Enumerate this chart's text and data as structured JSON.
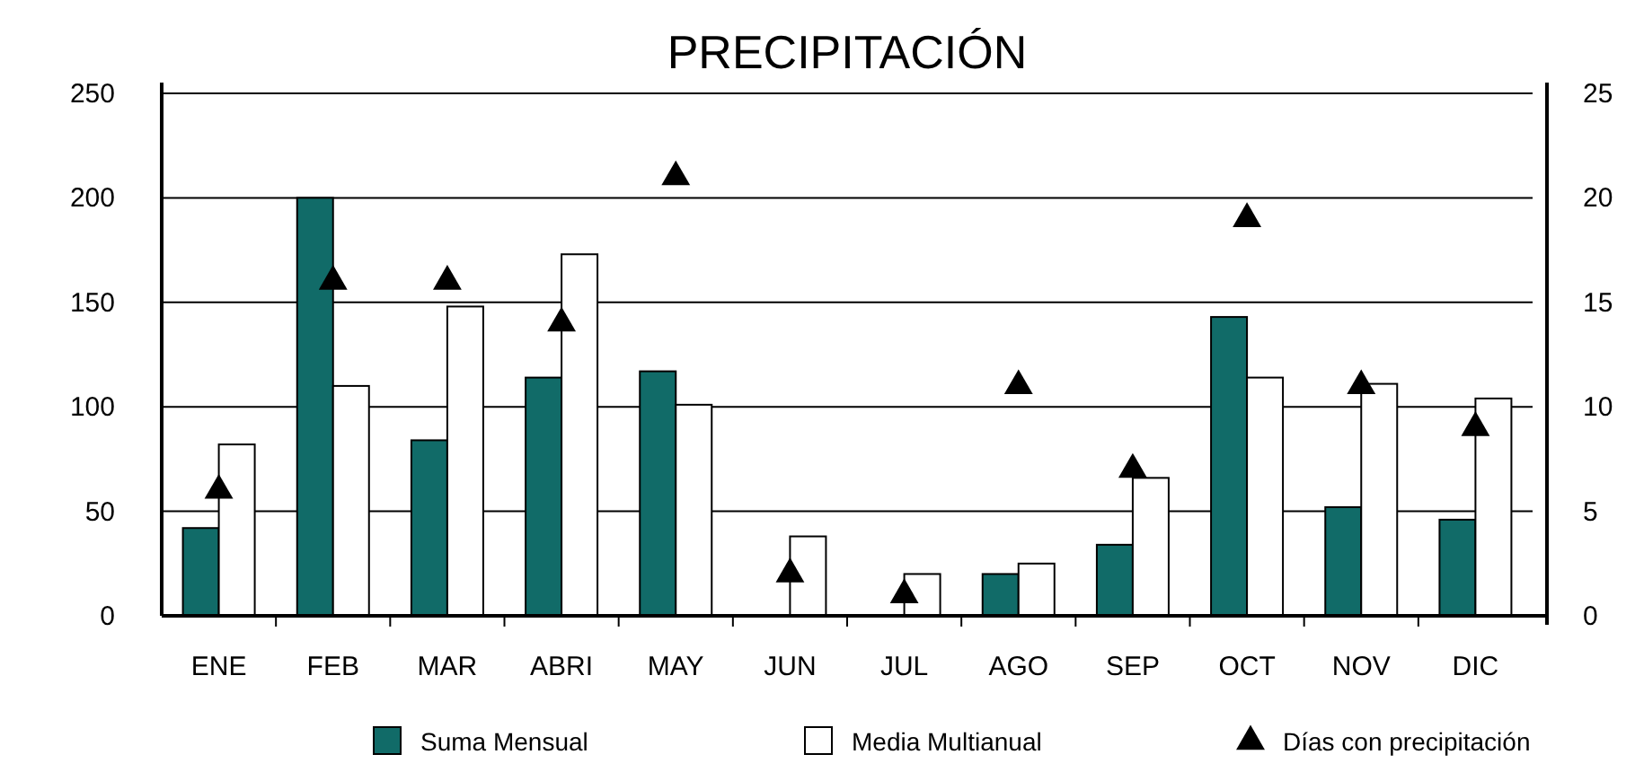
{
  "chart_data": {
    "type": "bar",
    "title": "PRECIPITACIÓN",
    "categories": [
      "ENE",
      "FEB",
      "MAR",
      "ABRI",
      "MAY",
      "JUN",
      "JUL",
      "AGO",
      "SEP",
      "OCT",
      "NOV",
      "DIC"
    ],
    "series": [
      {
        "name": "Suma Mensual",
        "color": "#116b68",
        "values": [
          42,
          200,
          84,
          114,
          117,
          0,
          0,
          20,
          34,
          143,
          52,
          46
        ]
      },
      {
        "name": "Media Multianual",
        "color": "#ffffff",
        "values": [
          82,
          110,
          148,
          173,
          101,
          38,
          20,
          25,
          66,
          114,
          111,
          104
        ]
      },
      {
        "name": "Días con precipitación",
        "type": "scatter",
        "axis": "y2",
        "color": "#000000",
        "marker": "triangle",
        "values": [
          6,
          16,
          16,
          14,
          21,
          2,
          1,
          11,
          7,
          19,
          11,
          9
        ]
      }
    ],
    "ylim": [
      0,
      250
    ],
    "yticks": [
      0,
      50,
      100,
      150,
      200,
      250
    ],
    "y2lim": [
      0,
      25
    ],
    "y2ticks": [
      0,
      5,
      10,
      15,
      20,
      25
    ],
    "grid": "y",
    "legend": "bottom"
  }
}
